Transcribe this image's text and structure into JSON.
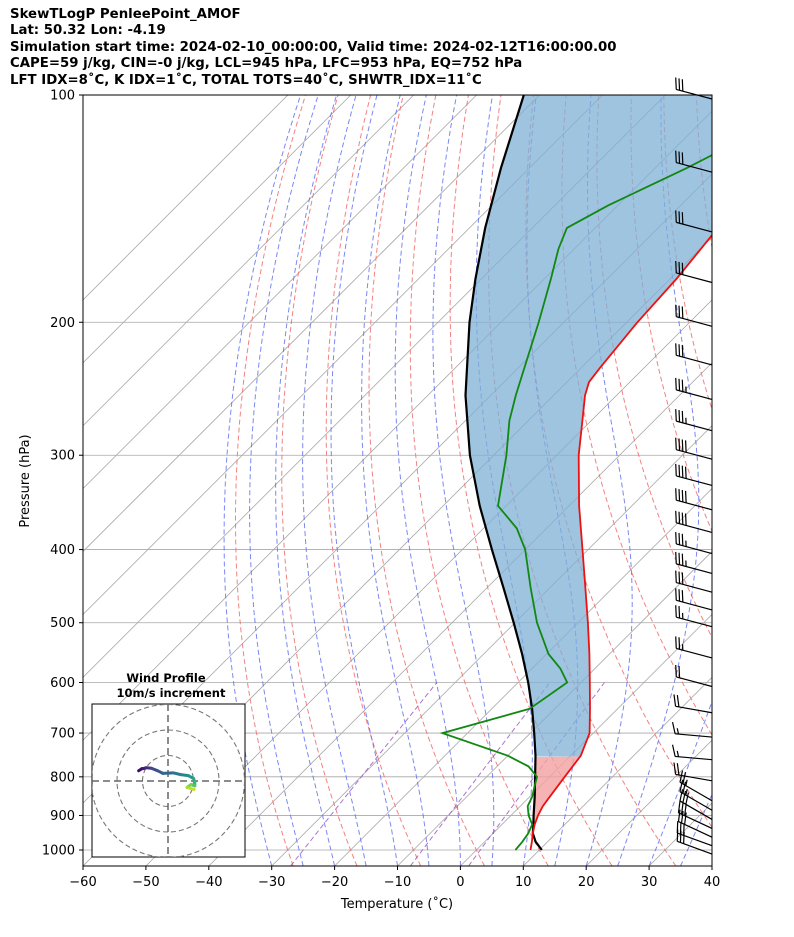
{
  "header": {
    "title": "SkewTLogP PenleePoint_AMOF",
    "lat_label": "Lat: 50.32",
    "lon_label": "Lon: -4.19",
    "simulation_line": "Simulation start time: 2024-02-10_00:00:00, Valid time: 2024-02-12T16:00:00.00",
    "cape_line": "CAPE=59 j/kg, CIN=-0 j/kg, LCL=945 hPa, LFC=953 hPa, EQ=752 hPa",
    "index_line": "LFT IDX=8˚C, K IDX=1˚C, TOTAL TOTS=40˚C, SHWTR_IDX=11˚C"
  },
  "chart_data": {
    "type": "skew-t",
    "xlabel": "Temperature (˚C)",
    "ylabel": "Pressure (hPa)",
    "xlim": [
      -60,
      40
    ],
    "ylim": [
      1050,
      100
    ],
    "x_ticks": [
      -60,
      -50,
      -40,
      -30,
      -20,
      -10,
      0,
      10,
      20,
      30,
      40
    ],
    "y_ticks": [
      100,
      200,
      300,
      400,
      500,
      600,
      700,
      800,
      900,
      1000
    ],
    "skew_deg": 45,
    "colors": {
      "temperature": "#ee1111",
      "dewpoint": "#118811",
      "parcel": "#000000",
      "cape_fill": "#7fb0d5",
      "cin_fill": "#f4a0a0",
      "isotherm": "#a8a8a8",
      "dry_adiabat": "#f26b6b",
      "moist_adiabat": "#5a6af0",
      "mixing_ratio": "#9e5bc9"
    },
    "temperature": {
      "pressure": [
        1000,
        975,
        950,
        925,
        900,
        875,
        850,
        800,
        775,
        750,
        700,
        650,
        600,
        550,
        500,
        450,
        400,
        350,
        300,
        270,
        250,
        240,
        230,
        200,
        175,
        150,
        140,
        125,
        100
      ],
      "values": [
        8.6,
        7.5,
        6.3,
        5.2,
        4.3,
        3.6,
        3.2,
        2.4,
        2.0,
        1.6,
        -0.6,
        -4.4,
        -8.6,
        -13.2,
        -18.4,
        -24.3,
        -30.9,
        -38.4,
        -46.5,
        -51.4,
        -55.0,
        -56.5,
        -57.0,
        -58.3,
        -59.0,
        -60.5,
        -62.5,
        -61.5,
        -60.0
      ]
    },
    "dewpoint": {
      "pressure": [
        1000,
        975,
        950,
        925,
        900,
        875,
        850,
        825,
        800,
        775,
        750,
        700,
        650,
        600,
        575,
        550,
        500,
        450,
        400,
        375,
        350,
        300,
        270,
        250,
        230,
        200,
        175,
        160,
        150,
        140,
        125,
        100
      ],
      "values": [
        6.2,
        6.0,
        5.6,
        4.8,
        2.8,
        1.2,
        0.4,
        -0.8,
        -2.0,
        -5.0,
        -10.0,
        -24.0,
        -14.0,
        -12.2,
        -15.5,
        -19.7,
        -26.5,
        -33.0,
        -40.0,
        -44.7,
        -51.3,
        -58.0,
        -63.0,
        -66.0,
        -69.0,
        -74.0,
        -79.0,
        -82.5,
        -84.5,
        -81.5,
        -75.0,
        -64.0
      ]
    },
    "parcel": {
      "pressure": [
        1000,
        975,
        950,
        925,
        900,
        850,
        800,
        750,
        700,
        650,
        600,
        550,
        500,
        450,
        400,
        350,
        300,
        250,
        200,
        175,
        150,
        125,
        100
      ],
      "values": [
        10.4,
        8.1,
        6.3,
        5.0,
        3.6,
        0.8,
        -2.3,
        -5.6,
        -9.4,
        -13.6,
        -18.4,
        -23.9,
        -30.2,
        -37.3,
        -45.3,
        -54.2,
        -63.8,
        -74.0,
        -85.0,
        -91.0,
        -97.5,
        -104.5,
        -112.5
      ]
    },
    "wind_barbs": {
      "pressure": [
        100,
        125,
        150,
        175,
        200,
        225,
        250,
        275,
        300,
        325,
        350,
        375,
        400,
        425,
        450,
        475,
        500,
        550,
        600,
        650,
        700,
        750,
        800,
        850,
        875,
        900,
        925,
        950,
        975,
        1000
      ],
      "speed_kt": [
        30,
        30,
        30,
        30,
        30,
        30,
        35,
        35,
        40,
        40,
        40,
        40,
        35,
        35,
        30,
        30,
        25,
        25,
        20,
        20,
        15,
        15,
        20,
        25,
        25,
        30,
        30,
        30,
        30,
        30
      ],
      "direction_deg": [
        285,
        285,
        285,
        285,
        285,
        285,
        285,
        285,
        285,
        285,
        285,
        285,
        285,
        285,
        285,
        285,
        285,
        285,
        285,
        280,
        275,
        275,
        280,
        300,
        300,
        300,
        295,
        295,
        290,
        290
      ]
    },
    "wind_profile_inset": {
      "title": "Wind Profile",
      "subtitle": "10m/s increment",
      "u": [
        -11.5,
        -10.3,
        -9.6,
        -8.6,
        -6.5,
        -4.0,
        -2.0,
        2.0,
        5.0,
        8.0,
        10.0,
        10.5,
        10.5,
        9.0,
        7.5,
        8.5,
        10.2
      ],
      "v": [
        4.0,
        4.8,
        4.9,
        5.2,
        5.0,
        4.0,
        3.0,
        3.2,
        2.5,
        2.1,
        1.0,
        -0.3,
        -1.9,
        -1.4,
        -2.5,
        -2.8,
        -3.3
      ]
    }
  }
}
